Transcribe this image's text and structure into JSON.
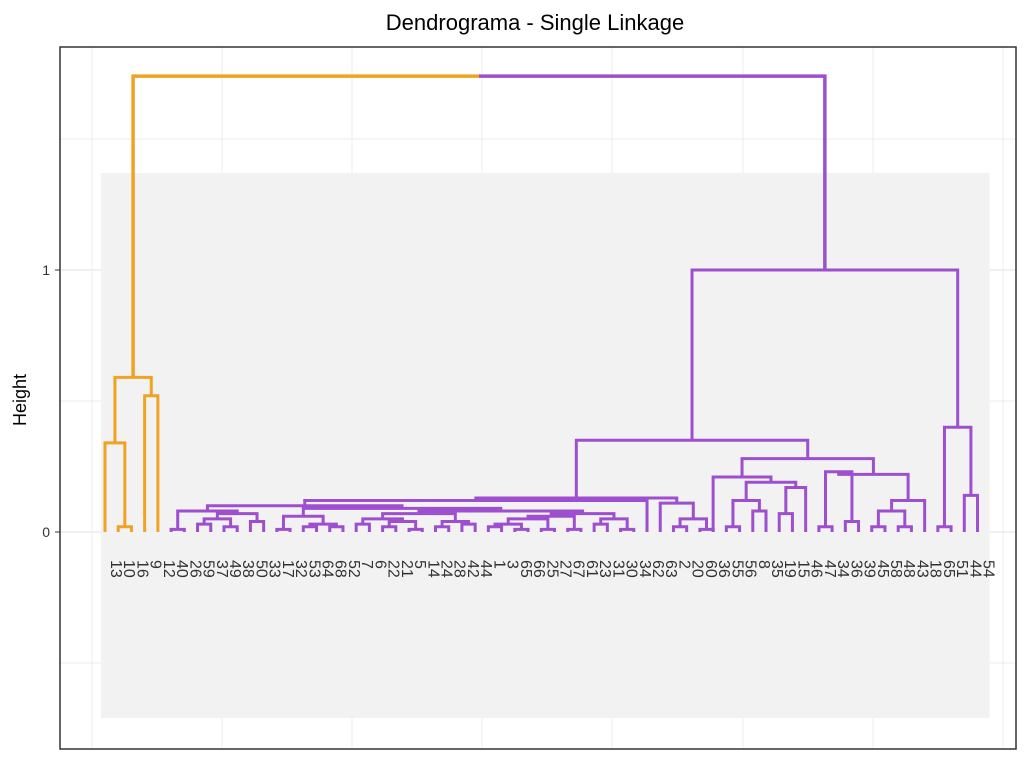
{
  "chart_data": {
    "type": "dendrogram",
    "title": "Dendrograma - Single Linkage",
    "xlabel": "",
    "ylabel": "Height",
    "ylim": [
      -0.75,
      1.85
    ],
    "yticks": [
      0,
      1
    ],
    "grid": true,
    "colors": {
      "orange": "#F0A223",
      "purple": "#9E4FCF",
      "panel": "#F2F2F2",
      "grid": "#E6E6E6"
    },
    "leaves": [
      "13",
      "10",
      "16",
      "9",
      "12",
      "40",
      "26",
      "59",
      "37",
      "49",
      "38",
      "50",
      "33",
      "17",
      "32",
      "53",
      "64",
      "68",
      "52",
      "7",
      "6",
      "22",
      "21",
      "5",
      "14",
      "24",
      "28",
      "42",
      "44",
      "1",
      "3",
      "65",
      "66",
      "25",
      "27",
      "67",
      "61",
      "23",
      "31",
      "30",
      "34",
      "62",
      "63",
      "2",
      "20",
      "60",
      "36",
      "55",
      "56",
      "8",
      "35",
      "19",
      "15",
      "46",
      "47",
      "34",
      "36",
      "39",
      "45",
      "58",
      "48",
      "43",
      "18",
      "65",
      "51",
      "44",
      "54"
    ],
    "groups": [
      {
        "color": "orange",
        "from_leaf": 0,
        "to_leaf": 4
      },
      {
        "color": "purple",
        "from_leaf": 5,
        "to_leaf": 66
      }
    ],
    "merges": [
      {
        "left": {
          "leaf": 1
        },
        "right": {
          "leaf": 2
        },
        "height": 0.02,
        "color": "orange"
      },
      {
        "left": {
          "leaf": 0
        },
        "right": {
          "node": 0
        },
        "height": 0.34,
        "color": "orange"
      },
      {
        "left": {
          "leaf": 3
        },
        "right": {
          "leaf": 4
        },
        "height": 0.52,
        "color": "orange"
      },
      {
        "left": {
          "node": 1
        },
        "right": {
          "node": 2
        },
        "height": 0.59,
        "color": "orange"
      },
      {
        "left": {
          "leaf": 5
        },
        "right": {
          "leaf": 6
        },
        "height": 0.01,
        "color": "purple"
      },
      {
        "left": {
          "leaf": 7
        },
        "right": {
          "leaf": 8
        },
        "height": 0.03,
        "color": "purple"
      },
      {
        "left": {
          "leaf": 9
        },
        "right": {
          "leaf": 10
        },
        "height": 0.02,
        "color": "purple"
      },
      {
        "left": {
          "node": 5
        },
        "right": {
          "node": 6
        },
        "height": 0.05,
        "color": "purple"
      },
      {
        "left": {
          "leaf": 11
        },
        "right": {
          "leaf": 12
        },
        "height": 0.04,
        "color": "purple"
      },
      {
        "left": {
          "node": 7
        },
        "right": {
          "node": 8
        },
        "height": 0.07,
        "color": "purple"
      },
      {
        "left": {
          "node": 4
        },
        "right": {
          "node": 9
        },
        "height": 0.08,
        "color": "purple"
      },
      {
        "left": {
          "leaf": 13
        },
        "right": {
          "leaf": 14
        },
        "height": 0.01,
        "color": "purple"
      },
      {
        "left": {
          "leaf": 15
        },
        "right": {
          "leaf": 16
        },
        "height": 0.02,
        "color": "purple"
      },
      {
        "left": {
          "leaf": 17
        },
        "right": {
          "leaf": 18
        },
        "height": 0.02,
        "color": "purple"
      },
      {
        "left": {
          "node": 12
        },
        "right": {
          "node": 13
        },
        "height": 0.03,
        "color": "purple"
      },
      {
        "left": {
          "node": 11
        },
        "right": {
          "node": 14
        },
        "height": 0.06,
        "color": "purple"
      },
      {
        "left": {
          "leaf": 19
        },
        "right": {
          "leaf": 20
        },
        "height": 0.03,
        "color": "purple"
      },
      {
        "left": {
          "leaf": 21
        },
        "right": {
          "leaf": 22
        },
        "height": 0.02,
        "color": "purple"
      },
      {
        "left": {
          "leaf": 23
        },
        "right": {
          "leaf": 24
        },
        "height": 0.01,
        "color": "purple"
      },
      {
        "left": {
          "node": 17
        },
        "right": {
          "node": 18
        },
        "height": 0.04,
        "color": "purple"
      },
      {
        "left": {
          "node": 16
        },
        "right": {
          "node": 19
        },
        "height": 0.05,
        "color": "purple"
      },
      {
        "left": {
          "leaf": 25
        },
        "right": {
          "leaf": 26
        },
        "height": 0.02,
        "color": "purple"
      },
      {
        "left": {
          "leaf": 27
        },
        "right": {
          "leaf": 28
        },
        "height": 0.03,
        "color": "purple"
      },
      {
        "left": {
          "node": 21
        },
        "right": {
          "node": 22
        },
        "height": 0.04,
        "color": "purple"
      },
      {
        "left": {
          "node": 20
        },
        "right": {
          "node": 23
        },
        "height": 0.07,
        "color": "purple"
      },
      {
        "left": {
          "leaf": 29
        },
        "right": {
          "leaf": 30
        },
        "height": 0.02,
        "color": "purple"
      },
      {
        "left": {
          "leaf": 31
        },
        "right": {
          "leaf": 32
        },
        "height": 0.01,
        "color": "purple"
      },
      {
        "left": {
          "node": 25
        },
        "right": {
          "node": 26
        },
        "height": 0.03,
        "color": "purple"
      },
      {
        "left": {
          "leaf": 33
        },
        "right": {
          "leaf": 34
        },
        "height": 0.01,
        "color": "purple"
      },
      {
        "left": {
          "node": 27
        },
        "right": {
          "node": 28
        },
        "height": 0.05,
        "color": "purple"
      },
      {
        "left": {
          "leaf": 35
        },
        "right": {
          "leaf": 36
        },
        "height": 0.01,
        "color": "purple"
      },
      {
        "left": {
          "node": 29
        },
        "right": {
          "node": 30
        },
        "height": 0.06,
        "color": "purple"
      },
      {
        "left": {
          "leaf": 37
        },
        "right": {
          "leaf": 38
        },
        "height": 0.03,
        "color": "purple"
      },
      {
        "left": {
          "leaf": 39
        },
        "right": {
          "leaf": 40
        },
        "height": 0.01,
        "color": "purple"
      },
      {
        "left": {
          "node": 32
        },
        "right": {
          "node": 33
        },
        "height": 0.05,
        "color": "purple"
      },
      {
        "left": {
          "node": 31
        },
        "right": {
          "node": 34
        },
        "height": 0.07,
        "color": "purple"
      },
      {
        "left": {
          "node": 24
        },
        "right": {
          "node": 35
        },
        "height": 0.08,
        "color": "purple"
      },
      {
        "left": {
          "node": 15
        },
        "right": {
          "node": 36
        },
        "height": 0.09,
        "color": "purple"
      },
      {
        "left": {
          "node": 10
        },
        "right": {
          "node": 37
        },
        "height": 0.1,
        "color": "purple"
      },
      {
        "left": {
          "node": 38
        },
        "right": {
          "leaf": 41
        },
        "height": 0.12,
        "color": "purple"
      },
      {
        "left": {
          "leaf": 43
        },
        "right": {
          "leaf": 44
        },
        "height": 0.02,
        "color": "purple"
      },
      {
        "left": {
          "leaf": 45
        },
        "right": {
          "leaf": 46
        },
        "height": 0.01,
        "color": "purple"
      },
      {
        "left": {
          "node": 40
        },
        "right": {
          "node": 41
        },
        "height": 0.05,
        "color": "purple"
      },
      {
        "left": {
          "leaf": 42
        },
        "right": {
          "node": 42
        },
        "height": 0.11,
        "color": "purple"
      },
      {
        "left": {
          "node": 39
        },
        "right": {
          "node": 43
        },
        "height": 0.13,
        "color": "purple"
      },
      {
        "left": {
          "leaf": 47
        },
        "right": {
          "leaf": 48
        },
        "height": 0.02,
        "color": "purple"
      },
      {
        "left": {
          "leaf": 49
        },
        "right": {
          "leaf": 50
        },
        "height": 0.08,
        "color": "purple"
      },
      {
        "left": {
          "node": 45
        },
        "right": {
          "node": 46
        },
        "height": 0.12,
        "color": "purple"
      },
      {
        "left": {
          "leaf": 51
        },
        "right": {
          "leaf": 52
        },
        "height": 0.07,
        "color": "purple"
      },
      {
        "left": {
          "node": 48
        },
        "right": {
          "leaf": 53
        },
        "height": 0.17,
        "color": "purple"
      },
      {
        "left": {
          "node": 47
        },
        "right": {
          "node": 49
        },
        "height": 0.19,
        "color": "purple"
      },
      {
        "left": {
          "leaf": 46
        },
        "right": {
          "node": 50
        },
        "height": 0.21,
        "color": "purple"
      },
      {
        "left": {
          "leaf": 54
        },
        "right": {
          "leaf": 55
        },
        "height": 0.02,
        "color": "purple"
      },
      {
        "left": {
          "leaf": 56
        },
        "right": {
          "leaf": 57
        },
        "height": 0.04,
        "color": "purple"
      },
      {
        "left": {
          "node": 52
        },
        "right": {
          "node": 53
        },
        "height": 0.23,
        "color": "purple"
      },
      {
        "left": {
          "leaf": 58
        },
        "right": {
          "leaf": 59
        },
        "height": 0.02,
        "color": "purple"
      },
      {
        "left": {
          "leaf": 60
        },
        "right": {
          "leaf": 61
        },
        "height": 0.02,
        "color": "purple"
      },
      {
        "left": {
          "node": 55
        },
        "right": {
          "node": 56
        },
        "height": 0.08,
        "color": "purple"
      },
      {
        "left": {
          "node": 57
        },
        "right": {
          "leaf": 62
        },
        "height": 0.12,
        "color": "purple"
      },
      {
        "left": {
          "node": 54
        },
        "right": {
          "node": 58
        },
        "height": 0.22,
        "color": "purple"
      },
      {
        "left": {
          "node": 51
        },
        "right": {
          "node": 59
        },
        "height": 0.28,
        "color": "purple"
      },
      {
        "left": {
          "node": 44
        },
        "right": {
          "node": 60
        },
        "height": 0.35,
        "color": "purple"
      },
      {
        "left": {
          "leaf": 63
        },
        "right": {
          "leaf": 64
        },
        "height": 0.02,
        "color": "purple"
      },
      {
        "left": {
          "leaf": 65
        },
        "right": {
          "leaf": 66
        },
        "height": 0.14,
        "color": "purple"
      },
      {
        "left": {
          "node": 62
        },
        "right": {
          "node": 63
        },
        "height": 0.4,
        "color": "purple"
      },
      {
        "left": {
          "node": 61
        },
        "right": {
          "node": 64
        },
        "height": 1.0,
        "color": "purple"
      },
      {
        "left": {
          "node": 3
        },
        "right": {
          "node": 65
        },
        "height": 1.74,
        "color": "split"
      }
    ]
  }
}
